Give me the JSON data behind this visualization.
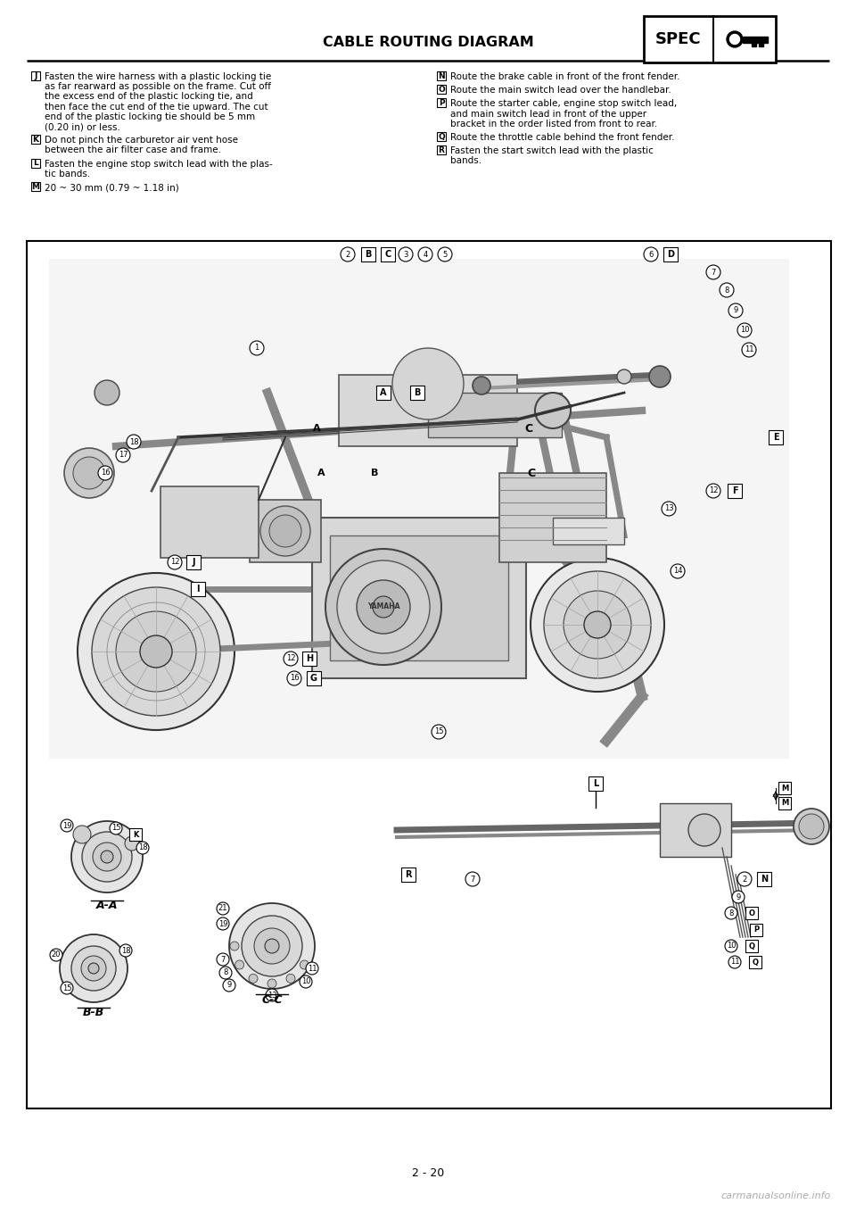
{
  "page_title": "CABLE ROUTING DIAGRAM",
  "spec_label": "SPEC",
  "page_number": "2 - 20",
  "watermark": "carmanualsonline.info",
  "background_color": "#ffffff",
  "text_color": "#000000",
  "fontsize_title": 11.5,
  "fontsize_body": 7.5,
  "fontsize_page_num": 9,
  "fontsize_spec": 13,
  "fontsize_watermark": 8,
  "left_instructions": [
    {
      "key": "J",
      "lines": [
        "Fasten the wire harness with a plastic locking tie",
        "as far rearward as possible on the frame. Cut off",
        "the excess end of the plastic locking tie, and",
        "then face the cut end of the tie upward. The cut",
        "end of the plastic locking tie should be 5 mm",
        "(0.20 in) or less."
      ]
    },
    {
      "key": "K",
      "lines": [
        "Do not pinch the carburetor air vent hose",
        "between the air filter case and frame."
      ]
    },
    {
      "key": "L",
      "lines": [
        "Fasten the engine stop switch lead with the plas-",
        "tic bands."
      ]
    },
    {
      "key": "M",
      "lines": [
        "20 ~ 30 mm (0.79 ~ 1.18 in)"
      ]
    }
  ],
  "right_instructions": [
    {
      "key": "N",
      "lines": [
        "Route the brake cable in front of the front fender."
      ]
    },
    {
      "key": "O",
      "lines": [
        "Route the main switch lead over the handlebar."
      ]
    },
    {
      "key": "P",
      "lines": [
        "Route the starter cable, engine stop switch lead,",
        "and main switch lead in front of the upper",
        "bracket in the order listed from front to rear."
      ]
    },
    {
      "key": "Q",
      "lines": [
        "Route the throttle cable behind the front fender."
      ]
    },
    {
      "key": "R",
      "lines": [
        "Fasten the start switch lead with the plastic",
        "bands."
      ]
    }
  ]
}
